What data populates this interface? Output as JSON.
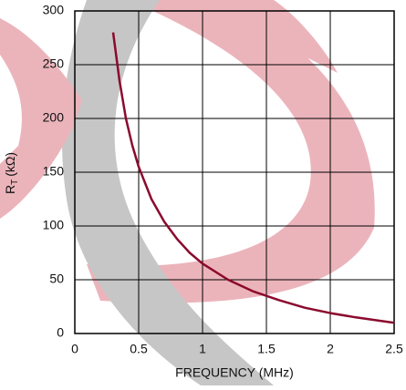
{
  "chart_data": {
    "type": "line",
    "y_label": {
      "text": "R",
      "subscript": "T",
      "unit": "(kΩ)"
    },
    "x_label": "FREQUENCY (MHz)",
    "series": [
      {
        "color": "#8b0a2e",
        "x": [
          0.3,
          0.35,
          0.4,
          0.45,
          0.5,
          0.6,
          0.7,
          0.8,
          0.9,
          1,
          1.2,
          1.4,
          1.6,
          1.8,
          2,
          2.2,
          2.5
        ],
        "values": [
          280,
          235,
          200,
          175,
          155,
          125,
          104,
          88,
          75,
          65,
          50,
          39,
          31,
          24,
          19,
          15,
          10
        ]
      }
    ],
    "xlim": [
      0,
      2.5
    ],
    "xticks": [
      0,
      0.5,
      1,
      1.5,
      2,
      2.5
    ],
    "ylim": [
      0,
      300
    ],
    "yticks": [
      0,
      50,
      100,
      150,
      200,
      250,
      300
    ],
    "grid": true
  }
}
